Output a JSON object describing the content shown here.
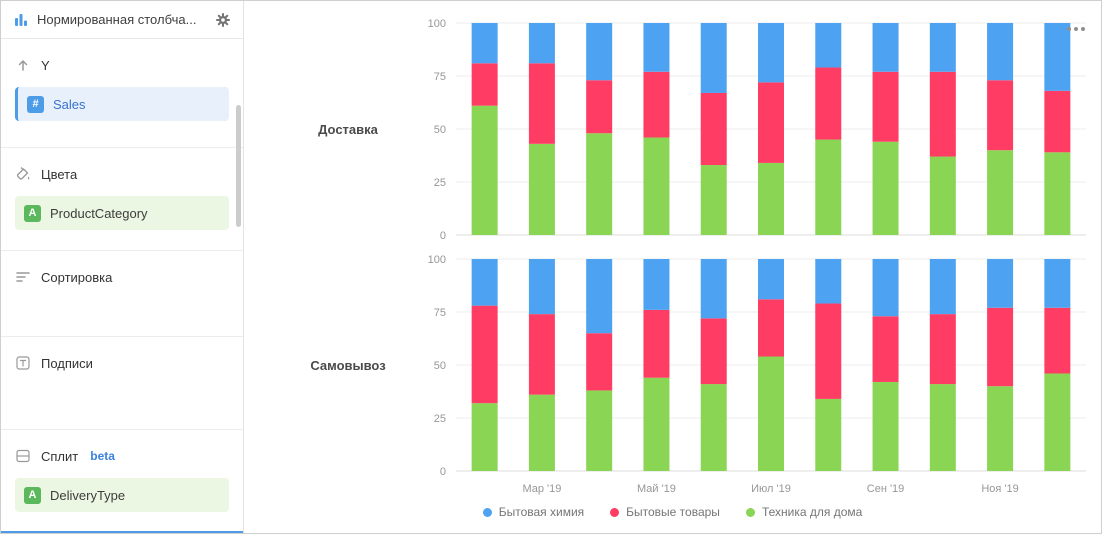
{
  "sidebar": {
    "header": {
      "title": "Нормированная столбча...",
      "left_icon": "bar-chart-icon",
      "right_icon": "gear-icon"
    },
    "sections": [
      {
        "id": "y",
        "icon": "arrow-up",
        "title": "Y",
        "badge": null,
        "fields": [
          {
            "label": "Sales",
            "icon": "hash",
            "color": "blue"
          }
        ]
      },
      {
        "id": "colors",
        "icon": "paint-bucket",
        "title": "Цвета",
        "badge": null,
        "fields": [
          {
            "label": "ProductCategory",
            "icon": "letter-a",
            "color": "green"
          }
        ]
      },
      {
        "id": "sort",
        "icon": "sort-lines",
        "title": "Сортировка",
        "badge": null,
        "fields": []
      },
      {
        "id": "labels",
        "icon": "text-t",
        "title": "Подписи",
        "badge": null,
        "fields": []
      },
      {
        "id": "split",
        "icon": "split-rows",
        "title": "Сплит",
        "badge": "beta",
        "fields": [
          {
            "label": "DeliveryType",
            "icon": "letter-a",
            "color": "green"
          }
        ]
      }
    ]
  },
  "colors": {
    "accent_blue": "#4d9ce8",
    "field_green": "#5bb85c",
    "beta_blue": "#3b82e0"
  },
  "chart_data": {
    "type": "bar",
    "variant": "stacked-normalized-100",
    "grid": true,
    "legend_position": "bottom",
    "ylim": [
      0,
      100
    ],
    "yticks": [
      0,
      25,
      50,
      75,
      100
    ],
    "bars_per_facet": 11,
    "x_tick_labels": [
      "Мар '19",
      "Май '19",
      "Июл '19",
      "Сен '19",
      "Ноя '19"
    ],
    "x_tick_slots": [
      1,
      3,
      5,
      7,
      9
    ],
    "series_colors": {
      "Бытовая химия": "#4DA2F1",
      "Бытовые товары": "#FF3D64",
      "Техника для дома": "#8AD554"
    },
    "stack_order_bottom_to_top": [
      "Техника для дома",
      "Бытовые товары",
      "Бытовая химия"
    ],
    "legend": [
      "Бытовая химия",
      "Бытовые товары",
      "Техника для дома"
    ],
    "facets": [
      {
        "label": "Доставка",
        "series": [
          {
            "name": "Техника для дома",
            "values": [
              61,
              43,
              48,
              46,
              33,
              34,
              45,
              44,
              37,
              40,
              39
            ]
          },
          {
            "name": "Бытовые товары",
            "values": [
              20,
              38,
              25,
              31,
              34,
              38,
              34,
              33,
              40,
              33,
              29
            ]
          },
          {
            "name": "Бытовая химия",
            "values": [
              19,
              19,
              27,
              23,
              33,
              28,
              21,
              23,
              23,
              27,
              32
            ]
          }
        ]
      },
      {
        "label": "Самовывоз",
        "series": [
          {
            "name": "Техника для дома",
            "values": [
              32,
              36,
              38,
              44,
              41,
              54,
              34,
              42,
              41,
              40,
              46
            ]
          },
          {
            "name": "Бытовые товары",
            "values": [
              46,
              38,
              27,
              32,
              31,
              27,
              45,
              31,
              33,
              37,
              31
            ]
          },
          {
            "name": "Бытовая химия",
            "values": [
              22,
              26,
              35,
              24,
              28,
              19,
              21,
              27,
              26,
              23,
              23
            ]
          }
        ]
      }
    ]
  }
}
